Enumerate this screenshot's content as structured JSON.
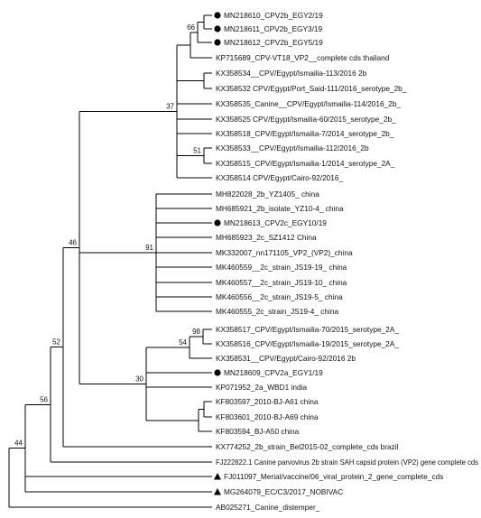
{
  "tree": {
    "leaves": [
      {
        "id": "L1",
        "label": "MN218610_CPV2b_EGY2/19",
        "marker": "circle"
      },
      {
        "id": "L2",
        "label": "MN218611_CPV2b_EGY3/19",
        "marker": "circle"
      },
      {
        "id": "L3",
        "label": "MN218612_CPV2b_EGY5/19",
        "marker": "circle"
      },
      {
        "id": "L4",
        "label": "KP715689_CPV-VT18_VP2__complete cds thailand",
        "marker": ""
      },
      {
        "id": "L5",
        "label": "KX358534__CPV/Egypt/Ismailia-113/2016 2b",
        "marker": ""
      },
      {
        "id": "L6",
        "label": "KX358532 CPV/Egypt/Port_Said-111/2016_serotype_2b_",
        "marker": ""
      },
      {
        "id": "L7",
        "label": "KX358535_Canine__CPV/Egypt/Ismailia-114/2016_2b_",
        "marker": ""
      },
      {
        "id": "L8",
        "label": "KX358525 CPV/Egypt/Ismailia-60/2015_serotype_2b_",
        "marker": ""
      },
      {
        "id": "L9",
        "label": "KX358518_CPV/Egypt/Ismailia-7/2014_serotype_2b_",
        "marker": ""
      },
      {
        "id": "L10",
        "label": "KX358533__CPV/Egypt/Ismailia-112/2016_2b",
        "marker": ""
      },
      {
        "id": "L11",
        "label": "KX358515_CPV/Egypt/Ismailia-1/2014_serotype_2A_",
        "marker": ""
      },
      {
        "id": "L12",
        "label": "KX358514 CPV/Egypt/Cairo-92/2016_",
        "marker": ""
      },
      {
        "id": "L13",
        "label": "MH822028_2b_YZ1405_ china",
        "marker": ""
      },
      {
        "id": "L14",
        "label": "MH685921_2b_isolate_YZ10-4_ china",
        "marker": ""
      },
      {
        "id": "L15",
        "label": "MN218613_CPV2c_EGY10/19",
        "marker": "circle"
      },
      {
        "id": "L16",
        "label": "MH685923_2c_SZ1412 China",
        "marker": ""
      },
      {
        "id": "L17",
        "label": "MK332007_nn171105_VP2_(VP2)_china",
        "marker": ""
      },
      {
        "id": "L18",
        "label": "MK460559__2c_strain_JS19-19_ china",
        "marker": ""
      },
      {
        "id": "L19",
        "label": "MK460557__2c_strain_JS19-10_ china",
        "marker": ""
      },
      {
        "id": "L20",
        "label": "MK460556__2c_strain_JS19-5_ china",
        "marker": ""
      },
      {
        "id": "L21",
        "label": "MK460555_2c_strain_JS19-4_ china",
        "marker": ""
      },
      {
        "id": "L22",
        "label": "KX358517_CPV/Egypt/Ismailia-70/2015_serotype_2A_",
        "marker": ""
      },
      {
        "id": "L23",
        "label": "KX358516_CPV/Egypt/Ismailia-19/2015_serotype_2A_",
        "marker": ""
      },
      {
        "id": "L24",
        "label": "KX358531__CPV/Egypt/Cairo-92/2016 2b",
        "marker": ""
      },
      {
        "id": "L25",
        "label": "MN218609_CPV2a_EGY1/19",
        "marker": "circle"
      },
      {
        "id": "L26",
        "label": "KP071952_2a_WBD1 india",
        "marker": ""
      },
      {
        "id": "L27",
        "label": "KF803597_2010-BJ-A61 china",
        "marker": ""
      },
      {
        "id": "L28",
        "label": "KF803601_2010-BJ-A69 china",
        "marker": ""
      },
      {
        "id": "L29",
        "label": "KF803594_BJ-A50 china",
        "marker": ""
      },
      {
        "id": "L30",
        "label": "KX774252_2b_strain_Bel2015-02_complete_cds brazil",
        "marker": ""
      },
      {
        "id": "L31",
        "label": "FJ222822.1 Canine parvovirus 2b strain SAH capsid protein (VP2) gene complete cds",
        "marker": ""
      },
      {
        "id": "L32",
        "label": "FJ011097_Merial/vaccine/06_viral_protein_2_gene_complete_cds",
        "marker": "triangle"
      },
      {
        "id": "L33",
        "label": "MG264079_EC/C3/2017_NOBIVAC",
        "marker": "triangle"
      },
      {
        "id": "L34",
        "label": "AB025271_Canine_distemper_",
        "marker": ""
      }
    ],
    "support_values": [
      {
        "id": "s66",
        "value": "66"
      },
      {
        "id": "s51",
        "value": "51"
      },
      {
        "id": "s37",
        "value": "37"
      },
      {
        "id": "s91",
        "value": "91"
      },
      {
        "id": "s98",
        "value": "98"
      },
      {
        "id": "s54",
        "value": "54"
      },
      {
        "id": "s30",
        "value": "30"
      },
      {
        "id": "s46",
        "value": "46"
      },
      {
        "id": "s52",
        "value": "52"
      },
      {
        "id": "s56",
        "value": "56"
      },
      {
        "id": "s44",
        "value": "44"
      }
    ]
  }
}
